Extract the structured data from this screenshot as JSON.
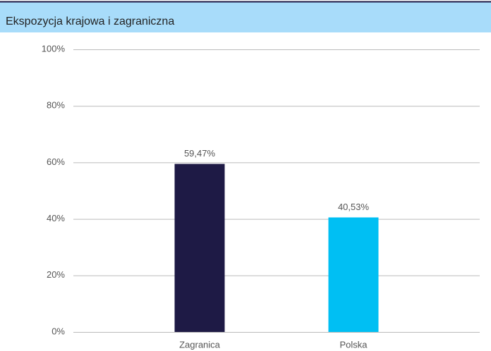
{
  "chart_data": {
    "type": "bar",
    "title": "Ekspozycja krajowa i zagraniczna",
    "categories": [
      "Zagranica",
      "Polska"
    ],
    "values": [
      59.47,
      40.53
    ],
    "value_labels": [
      "59,47%",
      "40,53%"
    ],
    "colors": [
      "#1e1a45",
      "#00bff3"
    ],
    "ylim": [
      0,
      100
    ],
    "yticks": [
      {
        "value": 0,
        "label": "0%"
      },
      {
        "value": 20,
        "label": "20%"
      },
      {
        "value": 40,
        "label": "40%"
      },
      {
        "value": 60,
        "label": "60%"
      },
      {
        "value": 80,
        "label": "80%"
      },
      {
        "value": 100,
        "label": "100%"
      }
    ],
    "grid": true
  }
}
